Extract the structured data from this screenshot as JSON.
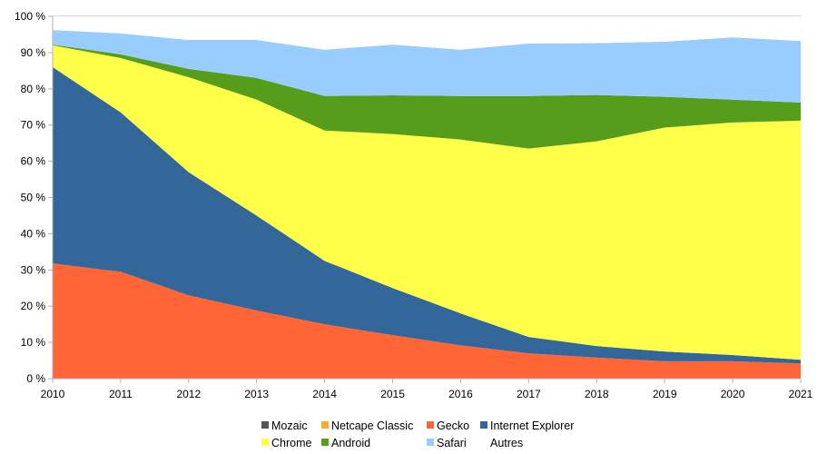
{
  "chart_data": {
    "type": "area",
    "stacked": true,
    "x": [
      "2010",
      "2011",
      "2012",
      "2013",
      "2014",
      "2015",
      "2016",
      "2017",
      "2018",
      "2019",
      "2020",
      "2021"
    ],
    "ylim": [
      0,
      100
    ],
    "yticks": [
      0,
      10,
      20,
      30,
      40,
      50,
      60,
      70,
      80,
      90,
      100
    ],
    "ytick_labels": [
      "0 %",
      "10 %",
      "20 %",
      "30 %",
      "40 %",
      "50 %",
      "60 %",
      "70 %",
      "80 %",
      "90 %",
      "100 %"
    ],
    "grid": "horizontal",
    "legend_position": "bottom",
    "series": [
      {
        "name": "Mozaic",
        "color": "#555555",
        "values": [
          0,
          0,
          0,
          0,
          0,
          0,
          0,
          0,
          0,
          0,
          0,
          0
        ]
      },
      {
        "name": "Netcape Classic",
        "color": "#ffa92f",
        "values": [
          0,
          0,
          0,
          0,
          0,
          0,
          0,
          0,
          0,
          0,
          0,
          0
        ]
      },
      {
        "name": "Gecko",
        "color": "#ff6535",
        "values": [
          31.8,
          29.5,
          23,
          18.8,
          15,
          12,
          9.2,
          7,
          5.8,
          4.8,
          4.8,
          4.2
        ]
      },
      {
        "name": "Internet Explorer",
        "color": "#336699",
        "values": [
          54.2,
          44,
          34,
          26.2,
          17.5,
          13,
          8.8,
          4.5,
          3.2,
          2.7,
          1.7,
          1
        ]
      },
      {
        "name": "Chrome",
        "color": "#ffff4a",
        "values": [
          6,
          15,
          26.2,
          32,
          36,
          42.5,
          48,
          52,
          56.5,
          61.8,
          64.2,
          66
        ]
      },
      {
        "name": "Android",
        "color": "#579d1c",
        "values": [
          0.2,
          1,
          2.3,
          6,
          9.5,
          10.7,
          12,
          14.5,
          12.8,
          8.5,
          6.3,
          5
        ]
      },
      {
        "name": "Safari",
        "color": "#99ccff",
        "values": [
          4,
          5.8,
          8,
          10.5,
          12.8,
          14,
          12.8,
          14.5,
          14.3,
          15.2,
          17.2,
          17
        ]
      },
      {
        "name": "Autres",
        "color": "#ffffff",
        "values": [
          3.8,
          4.7,
          6.5,
          6.5,
          9.2,
          7.8,
          9.2,
          7.5,
          7.4,
          7,
          5.8,
          6.8
        ]
      }
    ]
  }
}
